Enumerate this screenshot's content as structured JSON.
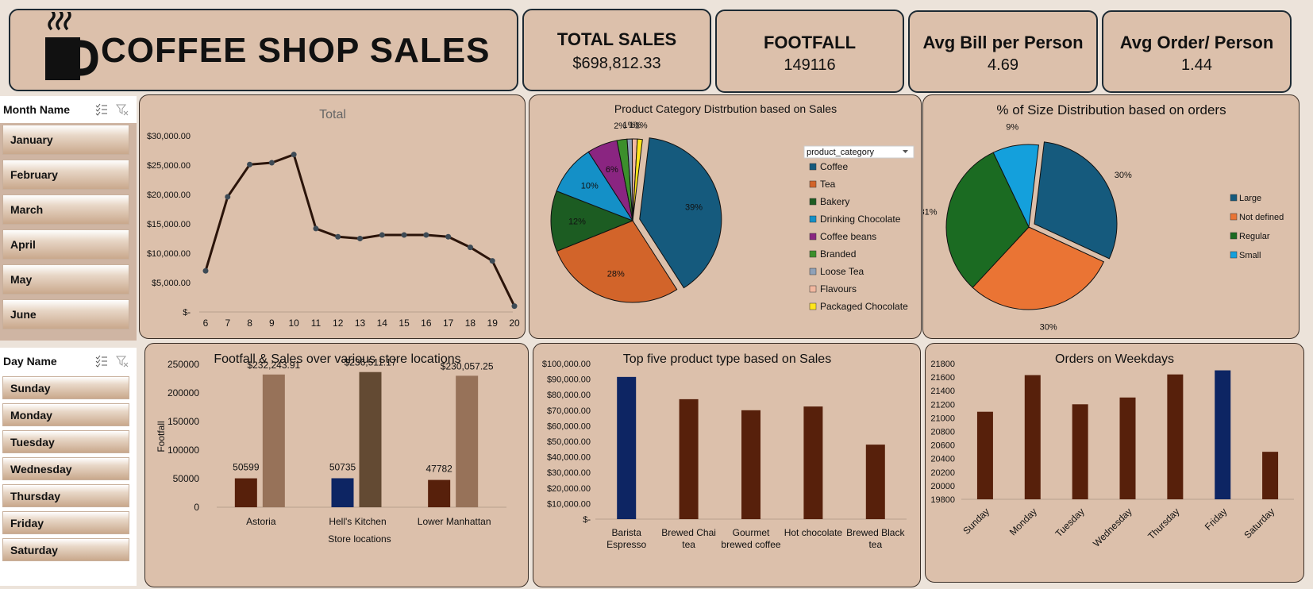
{
  "header": {
    "title": "COFFEE SHOP SALES",
    "logo_icon": "coffee-cup-icon"
  },
  "kpis": [
    {
      "title": "TOTAL SALES",
      "value": "$698,812.33"
    },
    {
      "title": "FOOTFALL",
      "value": "149116"
    },
    {
      "title": "Avg Bill per Person",
      "value": "4.69"
    },
    {
      "title": "Avg Order/ Person",
      "value": "1.44"
    }
  ],
  "slicers": {
    "month": {
      "title": "Month Name",
      "items": [
        "January",
        "February",
        "March",
        "April",
        "May",
        "June"
      ]
    },
    "day": {
      "title": "Day Name",
      "items": [
        "Sunday",
        "Monday",
        "Tuesday",
        "Wednesday",
        "Thursday",
        "Friday",
        "Saturday"
      ]
    },
    "icons": [
      "multi-select-icon",
      "clear-filter-icon"
    ]
  },
  "colors": {
    "panel": "#dcc0ab",
    "dark_brown": "#57200b",
    "navy": "#0d2563",
    "light_brown": "#977259",
    "mid_brown": "#634a33"
  },
  "chart_data": [
    {
      "id": "hourly",
      "type": "line",
      "title": "Total",
      "x": [
        6,
        7,
        8,
        9,
        10,
        11,
        12,
        13,
        14,
        15,
        16,
        17,
        18,
        19,
        20
      ],
      "values": [
        7000,
        19600,
        25100,
        25400,
        26800,
        14200,
        12800,
        12500,
        13100,
        13100,
        13100,
        12800,
        11000,
        8700,
        1000
      ],
      "ylim": [
        0,
        30000
      ],
      "yticks": [
        "$-",
        "$5,000.00",
        "$10,000.00",
        "$15,000.00",
        "$20,000.00",
        "$25,000.00",
        "$30,000.00"
      ],
      "grid": false
    },
    {
      "id": "category",
      "type": "pie",
      "title": "Product Category Distrbution based on Sales",
      "legend_title": "product_category",
      "legend_position": "right",
      "slices": [
        {
          "label": "Coffee",
          "value": 39,
          "display": "39%",
          "color": "#155a7d"
        },
        {
          "label": "Tea",
          "value": 28,
          "display": "28%",
          "color": "#d2642a"
        },
        {
          "label": "Bakery",
          "value": 12,
          "display": "12%",
          "color": "#1c5c22"
        },
        {
          "label": "Drinking Chocolate",
          "value": 10,
          "display": "10%",
          "color": "#1490c7"
        },
        {
          "label": "Coffee beans",
          "value": 6,
          "display": "6%",
          "color": "#8a2581"
        },
        {
          "label": "Branded",
          "value": 2,
          "display": "2%",
          "color": "#3c8f2c"
        },
        {
          "label": "Loose Tea",
          "value": 1,
          "display": "1%",
          "color": "#8fa1b8"
        },
        {
          "label": "Flavours",
          "value": 1,
          "display": "1%",
          "color": "#f2b8a0"
        },
        {
          "label": "Packaged Chocolate",
          "value": 1,
          "display": "1%",
          "color": "#ffe51a"
        }
      ]
    },
    {
      "id": "size",
      "type": "pie",
      "title": "% of Size Distribution based on orders",
      "legend_position": "right",
      "slices": [
        {
          "label": "Large",
          "value": 30,
          "display": "30%",
          "color": "#155a7d"
        },
        {
          "label": "Not defined",
          "value": 30,
          "display": "30%",
          "color": "#ea7434"
        },
        {
          "label": "Regular",
          "value": 31,
          "display": "31%",
          "color": "#1b6b22"
        },
        {
          "label": "Small",
          "value": 9,
          "display": "9%",
          "color": "#14a0dc"
        }
      ]
    },
    {
      "id": "stores",
      "type": "bar",
      "title": "Footfall & Sales over various store locations",
      "xlabel": "Store locations",
      "ylabel": "Footfall",
      "categories": [
        "Astoria",
        "Hell's Kitchen",
        "Lower Manhattan"
      ],
      "series": [
        {
          "values": [
            50599,
            50735,
            47782
          ],
          "labels": [
            "50599",
            "50735",
            "47782"
          ]
        },
        {
          "values": [
            232243.91,
            236511.17,
            230057.25
          ],
          "labels": [
            "$232,243.91",
            "$236,511.17",
            "$230,057.25"
          ]
        }
      ],
      "ylim": [
        0,
        250000
      ],
      "yticks": [
        "0",
        "50000",
        "100000",
        "150000",
        "200000",
        "250000"
      ]
    },
    {
      "id": "products",
      "type": "bar",
      "title": "Top five product type based on Sales",
      "categories": [
        "Barista Espresso",
        "Brewed Chai tea",
        "Gourmet brewed coffee",
        "Hot chocolate",
        "Brewed Black tea"
      ],
      "values": [
        91400,
        77100,
        70000,
        72400,
        47900
      ],
      "ylim": [
        0,
        100000
      ],
      "yticks": [
        "$-",
        "$10,000.00",
        "$20,000.00",
        "$30,000.00",
        "$40,000.00",
        "$50,000.00",
        "$60,000.00",
        "$70,000.00",
        "$80,000.00",
        "$90,000.00",
        "$100,000.00"
      ]
    },
    {
      "id": "weekdays",
      "type": "bar",
      "title": "Orders on Weekdays",
      "categories": [
        "Sunday",
        "Monday",
        "Tuesday",
        "Wednesday",
        "Thursday",
        "Friday",
        "Saturday"
      ],
      "values": [
        21090,
        21630,
        21200,
        21300,
        21640,
        21700,
        20500
      ],
      "ylim": [
        19800,
        21800
      ],
      "yticks": [
        "19800",
        "20000",
        "20200",
        "20400",
        "20600",
        "20800",
        "21000",
        "21200",
        "21400",
        "21600",
        "21800"
      ]
    }
  ]
}
